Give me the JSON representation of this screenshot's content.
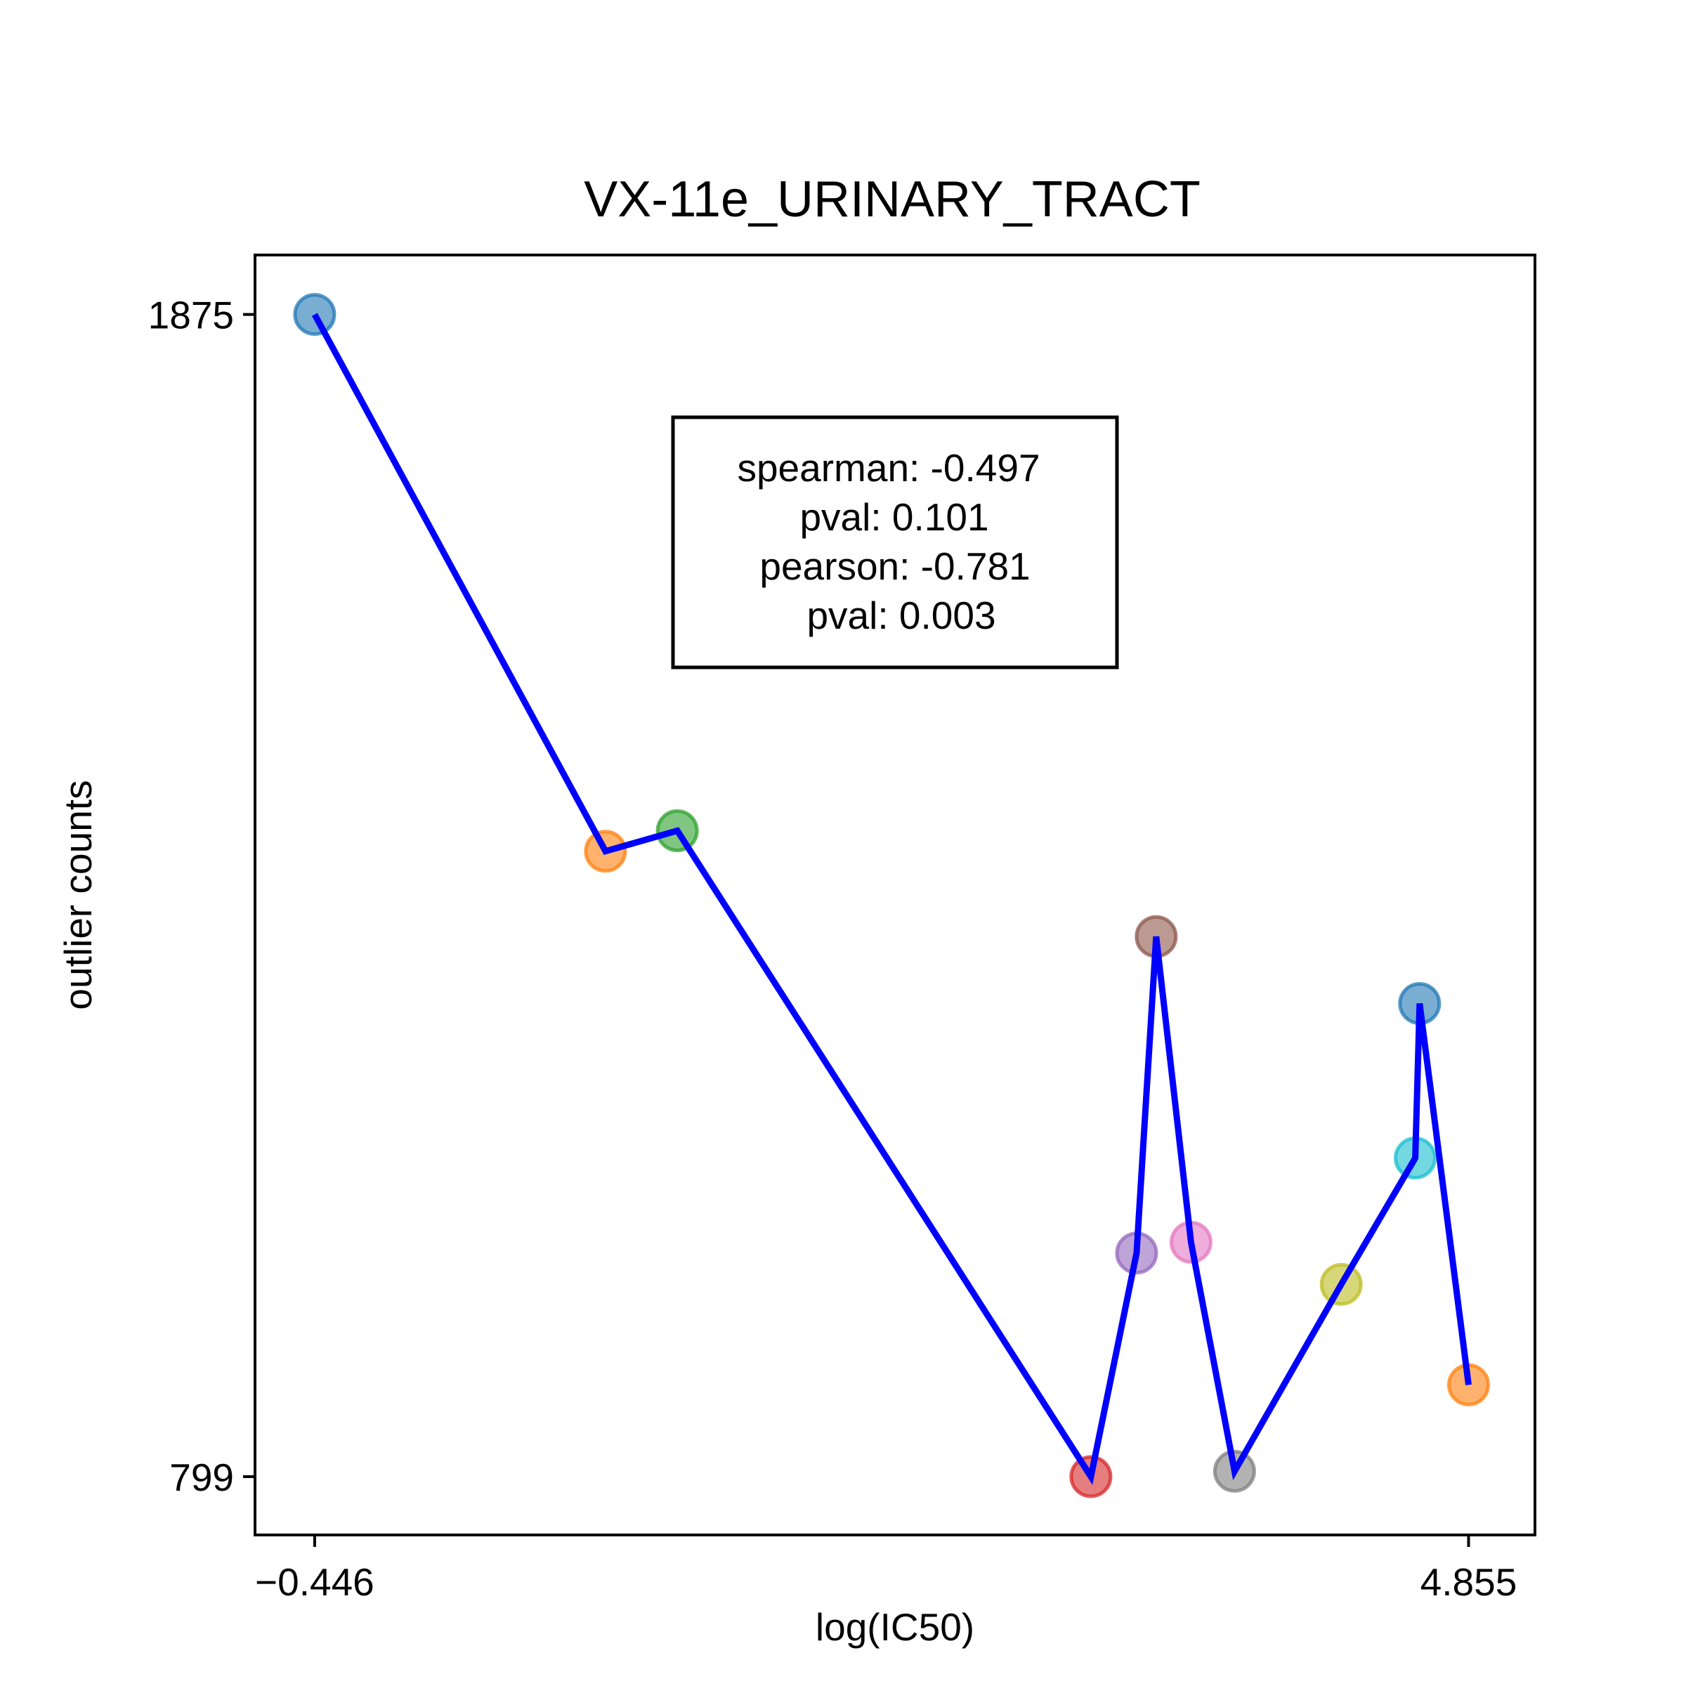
{
  "chart_data": {
    "type": "scatter",
    "title": "VX-11e_URINARY_TRACT",
    "xlabel": "log(IC50)",
    "ylabel": "outlier counts",
    "xlim": [
      -0.72,
      5.16
    ],
    "ylim": [
      745,
      1930
    ],
    "x_ticks": [
      {
        "value": -0.446,
        "label": "−0.446"
      },
      {
        "value": 4.855,
        "label": "4.855"
      }
    ],
    "y_ticks": [
      {
        "value": 1875,
        "label": "1875"
      },
      {
        "value": 799,
        "label": "799"
      }
    ],
    "grid": false,
    "line_color": "#0000ff",
    "points": [
      {
        "x": -0.446,
        "y": 1875,
        "color": "#1f77b4"
      },
      {
        "x": 0.89,
        "y": 1378,
        "color": "#ff7f0e"
      },
      {
        "x": 1.22,
        "y": 1397,
        "color": "#2ca02c"
      },
      {
        "x": 3.12,
        "y": 799,
        "color": "#d62728"
      },
      {
        "x": 3.33,
        "y": 1006,
        "color": "#9467bd"
      },
      {
        "x": 3.42,
        "y": 1299,
        "color": "#8c564b"
      },
      {
        "x": 3.58,
        "y": 1016,
        "color": "#e377c2"
      },
      {
        "x": 3.78,
        "y": 804,
        "color": "#7f7f7f"
      },
      {
        "x": 4.27,
        "y": 977,
        "color": "#bcbd22"
      },
      {
        "x": 4.61,
        "y": 1094,
        "color": "#17becf"
      },
      {
        "x": 4.63,
        "y": 1237,
        "color": "#1f77b4"
      },
      {
        "x": 4.855,
        "y": 884,
        "color": "#ff7f0e"
      }
    ],
    "annotation": {
      "lines": [
        "spearman: -0.497",
        "pval: 0.101",
        "pearson: -0.781",
        "pval: 0.003"
      ]
    }
  }
}
